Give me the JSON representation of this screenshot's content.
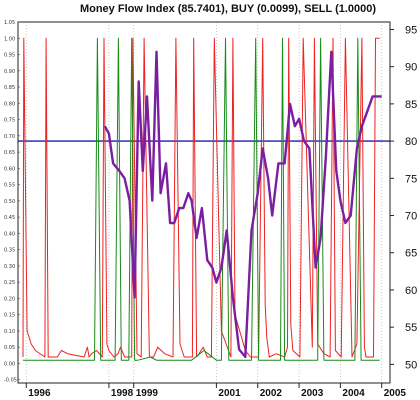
{
  "chart_data": {
    "type": "line",
    "title": "Money Flow Index (85.7401), BUY (0.0099), SELL (1.0000)",
    "x_tick_labels": [
      "1996",
      "1998",
      "1999",
      "2001",
      "2002",
      "2003",
      "2004",
      "2005"
    ],
    "x_tick_values": [
      1996.0,
      1998.0,
      1998.6,
      2000.6,
      2001.6,
      2002.6,
      2003.6,
      2004.6
    ],
    "x_range": [
      1995.8,
      2004.8
    ],
    "y_right_ticks": [
      "95",
      "90",
      "85",
      "80",
      "75",
      "70",
      "65",
      "60",
      "55",
      "50"
    ],
    "y_right_range": [
      47.5,
      96
    ],
    "y_left_ticks": [
      "1.05",
      "1.00",
      "0.95",
      "0.90",
      "0.85",
      "0.80",
      "0.75",
      "0.70",
      "0.65",
      "0.60",
      "0.55",
      "0.50",
      "0.45",
      "0.40",
      "0.35",
      "0.30",
      "0.25",
      "0.20",
      "0.15",
      "0.10",
      "0.05",
      "0.00",
      "-0.05"
    ],
    "y_left_range": [
      -0.06,
      1.05
    ],
    "reference_line": 80,
    "grid": "vertical dotted at year ticks",
    "colors": {
      "mfi": "#7a1fa0",
      "sell": "#ee2222",
      "buy": "#1a8a1a",
      "reference": "#1c1cb4"
    },
    "series": [
      {
        "key": "mfi",
        "axis": "right",
        "x": [
          1997.9,
          1998.0,
          1998.1,
          1998.25,
          1998.38,
          1998.5,
          1998.62,
          1998.72,
          1998.82,
          1998.92,
          1999.05,
          1999.15,
          1999.25,
          1999.38,
          1999.48,
          1999.58,
          1999.7,
          1999.8,
          1999.92,
          2000.0,
          2000.12,
          2000.25,
          2000.38,
          2000.5,
          2000.6,
          2000.72,
          2000.85,
          2001.0,
          2001.15,
          2001.3,
          2001.45,
          2001.6,
          2001.72,
          2001.85,
          2001.95,
          2002.1,
          2002.25,
          2002.38,
          2002.5,
          2002.6,
          2002.72,
          2002.85,
          2003.0,
          2003.12,
          2003.25,
          2003.38,
          2003.5,
          2003.6,
          2003.72,
          2003.85,
          2004.0,
          2004.12,
          2004.25,
          2004.38,
          2004.5,
          2004.6
        ],
        "y": [
          82,
          81,
          77,
          76,
          75,
          72,
          59,
          88,
          76,
          86,
          72,
          92,
          73,
          77,
          69,
          69,
          71,
          71,
          73,
          72,
          67,
          71,
          64,
          63,
          61,
          63,
          68,
          59,
          52,
          51,
          68,
          73,
          79,
          75,
          70,
          77,
          77,
          85,
          82,
          83,
          80,
          79,
          63,
          67,
          78,
          92,
          76,
          72,
          69,
          70,
          79,
          82,
          84,
          86,
          86,
          86
        ]
      },
      {
        "key": "sell",
        "axis": "left",
        "x": [
          1995.92,
          1995.94,
          1996.02,
          1996.12,
          1996.22,
          1996.45,
          1996.48,
          1996.53,
          1996.75,
          1996.85,
          1997.0,
          1997.4,
          1997.48,
          1997.52,
          1997.58,
          1997.7,
          1997.84,
          1997.88,
          1997.95,
          1998.0,
          1998.12,
          1998.22,
          1998.28,
          1998.38,
          1998.55,
          1998.58,
          1998.68,
          1998.78,
          1998.85,
          1998.98,
          1999.08,
          1999.18,
          1999.35,
          1999.55,
          1999.62,
          1999.72,
          1999.82,
          2000.02,
          2000.05,
          2000.12,
          2000.18,
          2000.28,
          2000.38,
          2000.48,
          2000.55,
          2000.72,
          2000.95,
          2001.0,
          2001.05,
          2001.3,
          2001.42,
          2001.62,
          2001.72,
          2001.78,
          2001.82,
          2001.88,
          2002.05,
          2002.25,
          2002.32,
          2002.35,
          2002.4,
          2002.45,
          2002.62,
          2002.7,
          2002.92,
          2002.97,
          2003.05,
          2003.2,
          2003.35,
          2003.42,
          2003.48,
          2003.62,
          2003.72,
          2003.88,
          2004.0,
          2004.12,
          2004.18,
          2004.22,
          2004.4,
          2004.45,
          2004.55
        ],
        "y": [
          0.02,
          1.0,
          0.1,
          0.06,
          0.04,
          0.02,
          1.0,
          0.02,
          0.02,
          0.04,
          0.03,
          0.02,
          0.05,
          0.02,
          0.03,
          0.04,
          0.02,
          1.0,
          0.06,
          0.04,
          0.02,
          0.03,
          0.05,
          0.02,
          0.02,
          1.0,
          0.03,
          0.02,
          1.0,
          0.02,
          0.02,
          0.05,
          0.03,
          0.02,
          1.0,
          0.06,
          0.02,
          0.02,
          1.0,
          0.02,
          0.03,
          0.05,
          0.02,
          0.02,
          1.0,
          0.1,
          0.02,
          1.0,
          0.15,
          0.04,
          0.02,
          0.02,
          1.0,
          0.18,
          0.08,
          0.02,
          0.03,
          0.02,
          0.05,
          1.0,
          0.12,
          0.04,
          0.02,
          1.0,
          0.05,
          1.0,
          0.06,
          0.03,
          0.02,
          1.0,
          0.04,
          0.02,
          1.0,
          0.02,
          0.06,
          1.0,
          0.05,
          0.02,
          0.02,
          1.0,
          1.0
        ]
      },
      {
        "key": "buy",
        "axis": "left",
        "x": [
          1995.92,
          1996.2,
          1996.45,
          1996.75,
          1997.0,
          1997.25,
          1997.5,
          1997.65,
          1997.72,
          1997.8,
          1998.0,
          1998.15,
          1998.23,
          1998.3,
          1998.38,
          1998.48,
          1998.55,
          1998.62,
          1998.7,
          1999.0,
          1999.15,
          1999.3,
          1999.5,
          1999.8,
          2000.0,
          2000.3,
          2000.6,
          2000.72,
          2000.82,
          2000.9,
          2001.0,
          2001.2,
          2001.45,
          2001.55,
          2001.62,
          2001.75,
          2002.0,
          2002.15,
          2002.2,
          2002.25,
          2002.35,
          2002.6,
          2002.9,
          2003.05,
          2003.12,
          2003.2,
          2003.3,
          2003.5,
          2003.8,
          2003.95,
          2004.02,
          2004.1,
          2004.3,
          2004.55
        ],
        "y": [
          0.01,
          0.01,
          0.01,
          0.01,
          0.01,
          0.01,
          0.01,
          0.01,
          1.0,
          0.01,
          0.01,
          0.01,
          1.0,
          0.01,
          0.01,
          0.01,
          1.0,
          0.01,
          0.01,
          0.02,
          0.01,
          0.01,
          0.01,
          0.01,
          0.01,
          0.04,
          0.01,
          0.01,
          1.0,
          0.01,
          0.01,
          0.01,
          0.01,
          1.0,
          0.01,
          0.01,
          0.01,
          0.01,
          1.0,
          0.01,
          0.01,
          0.01,
          0.01,
          0.01,
          1.0,
          0.01,
          0.01,
          0.01,
          0.01,
          0.01,
          1.0,
          0.01,
          0.01,
          0.01
        ]
      }
    ]
  }
}
